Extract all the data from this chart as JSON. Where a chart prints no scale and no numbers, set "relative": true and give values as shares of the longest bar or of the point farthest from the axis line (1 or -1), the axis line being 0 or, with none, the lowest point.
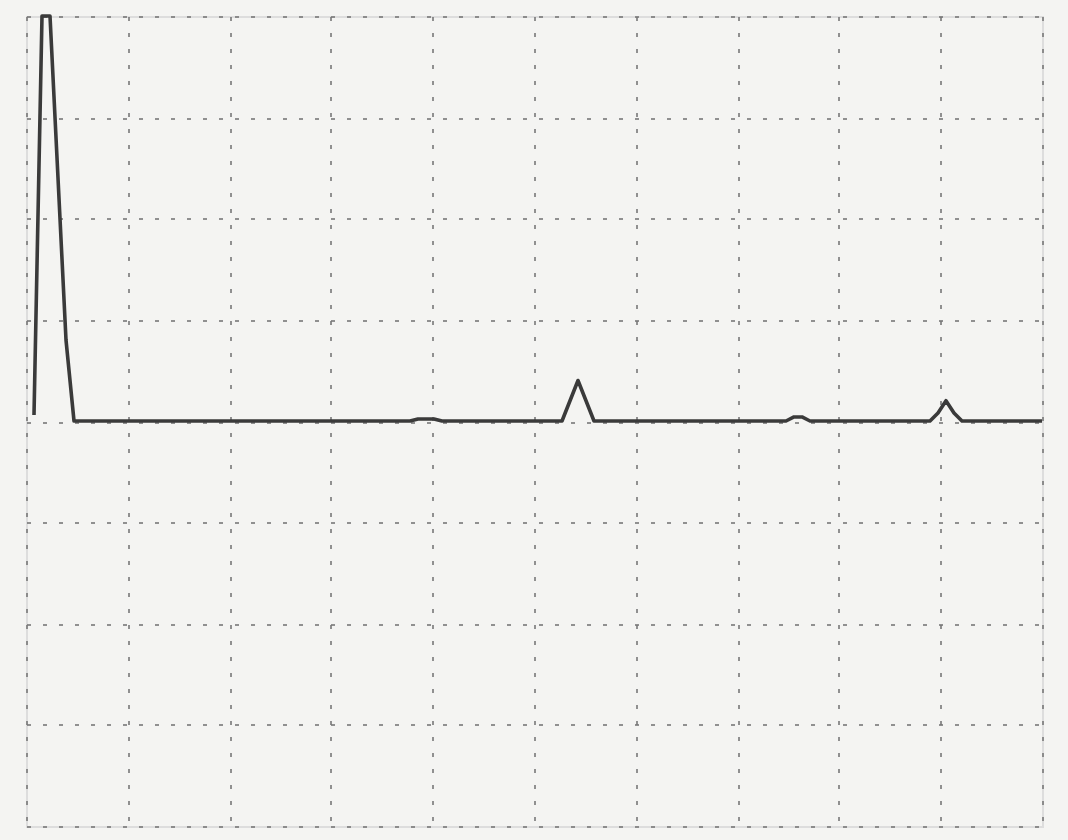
{
  "chart_data": {
    "type": "line",
    "relative": true,
    "grid": true,
    "color": "#3a3a3a",
    "categories": [
      null,
      null,
      null,
      null,
      null,
      null,
      null,
      null,
      null,
      null,
      null,
      null,
      null,
      null,
      null,
      null,
      null,
      null,
      null,
      null,
      null,
      null,
      null,
      null,
      null,
      null,
      null,
      null,
      null,
      null,
      null,
      null,
      null,
      null,
      null,
      null,
      null,
      null,
      null,
      null,
      null,
      null,
      null,
      null,
      null,
      null,
      null,
      null,
      null,
      null,
      null,
      null,
      null,
      null,
      null,
      null,
      null,
      null,
      null,
      null,
      null,
      null,
      null,
      null,
      null,
      null,
      null,
      null,
      null,
      null,
      null,
      null,
      null,
      null,
      null,
      null,
      null,
      null,
      null,
      null,
      null,
      null,
      null,
      null,
      null,
      null,
      null,
      null,
      null,
      null,
      null,
      null,
      null,
      null,
      null,
      null,
      null,
      null,
      null,
      null,
      null,
      null,
      null,
      null,
      null,
      null,
      null,
      null,
      null,
      null,
      null,
      null,
      null,
      null,
      null,
      null,
      null,
      null,
      null,
      null,
      null,
      null,
      null,
      null,
      null,
      null,
      null,
      null
    ],
    "values": [
      null,
      0.015,
      1,
      1,
      0.6,
      0.2,
      0,
      0,
      0,
      0,
      0,
      0,
      0,
      0,
      0,
      0,
      0,
      0,
      0,
      0,
      0,
      0,
      0,
      0,
      0,
      0,
      0,
      0,
      0,
      0,
      0,
      0,
      0,
      0,
      0,
      0,
      0,
      0,
      0,
      0,
      0,
      0,
      0,
      0,
      0,
      0,
      0,
      0,
      0,
      0.005,
      0.005,
      0.005,
      0,
      0,
      0,
      0,
      0,
      0,
      0,
      0,
      0,
      0,
      0,
      0,
      0,
      0,
      0,
      0,
      0.05,
      0.1,
      0.05,
      0,
      0,
      0,
      0,
      0,
      0,
      0,
      0,
      0,
      0,
      0,
      0,
      0,
      0,
      0,
      0,
      0,
      0,
      0,
      0,
      0,
      0,
      0,
      0,
      0,
      0.01,
      0.01,
      0,
      0,
      0,
      0,
      0,
      0,
      0,
      0,
      0,
      0,
      0,
      0,
      0,
      0,
      0,
      0,
      0.02,
      0.05,
      0.02,
      0,
      0,
      0,
      0,
      0,
      0,
      0,
      0,
      0,
      0,
      0
    ]
  }
}
